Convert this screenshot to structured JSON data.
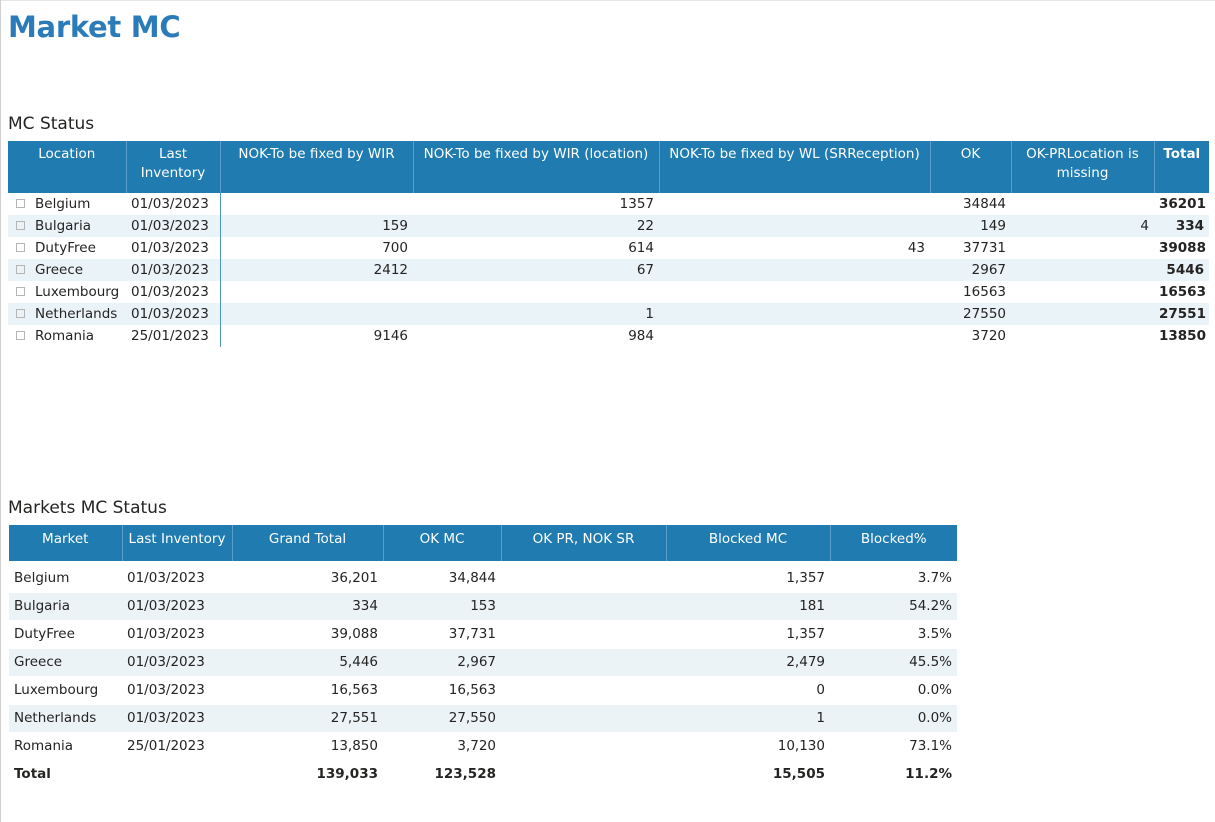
{
  "page": {
    "title": "Market MC"
  },
  "mc_status": {
    "title": "MC Status",
    "headers": [
      "Location",
      "Last Inventory",
      "NOK-To be fixed by WIR",
      "NOK-To be fixed by WIR (location)",
      "NOK-To be fixed by WL (SRReception)",
      "OK",
      "OK-PRLocation is missing",
      "Total"
    ],
    "rows": [
      [
        "Belgium",
        "01/03/2023",
        "",
        "1357",
        "",
        "34844",
        "",
        "36201"
      ],
      [
        "Bulgaria",
        "01/03/2023",
        "159",
        "22",
        "",
        "149",
        "4",
        "334"
      ],
      [
        "DutyFree",
        "01/03/2023",
        "700",
        "614",
        "43",
        "37731",
        "",
        "39088"
      ],
      [
        "Greece",
        "01/03/2023",
        "2412",
        "67",
        "",
        "2967",
        "",
        "5446"
      ],
      [
        "Luxembourg",
        "01/03/2023",
        "",
        "",
        "",
        "16563",
        "",
        "16563"
      ],
      [
        "Netherlands",
        "01/03/2023",
        "",
        "1",
        "",
        "27550",
        "",
        "27551"
      ],
      [
        "Romania",
        "25/01/2023",
        "9146",
        "984",
        "",
        "3720",
        "",
        "13850"
      ]
    ]
  },
  "markets_status": {
    "title": "Markets MC Status",
    "headers": [
      "Market",
      "Last Inventory",
      "Grand Total",
      "OK MC",
      "OK PR, NOK SR",
      "Blocked MC",
      "Blocked%"
    ],
    "rows": [
      [
        "Belgium",
        "01/03/2023",
        "36,201",
        "34,844",
        "",
        "1,357",
        "3.7%"
      ],
      [
        "Bulgaria",
        "01/03/2023",
        "334",
        "153",
        "",
        "181",
        "54.2%"
      ],
      [
        "DutyFree",
        "01/03/2023",
        "39,088",
        "37,731",
        "",
        "1,357",
        "3.5%"
      ],
      [
        "Greece",
        "01/03/2023",
        "5,446",
        "2,967",
        "",
        "2,479",
        "45.5%"
      ],
      [
        "Luxembourg",
        "01/03/2023",
        "16,563",
        "16,563",
        "",
        "0",
        "0.0%"
      ],
      [
        "Netherlands",
        "01/03/2023",
        "27,551",
        "27,550",
        "",
        "1",
        "0.0%"
      ],
      [
        "Romania",
        "25/01/2023",
        "13,850",
        "3,720",
        "",
        "10,130",
        "73.1%"
      ]
    ],
    "total": [
      "Total",
      "",
      "139,033",
      "123,528",
      "",
      "15,505",
      "11.2%"
    ]
  },
  "colors": {
    "title": "#2b7bb9",
    "header_bg": "#1f7bb0",
    "row_alt": "#eaf3f8"
  }
}
